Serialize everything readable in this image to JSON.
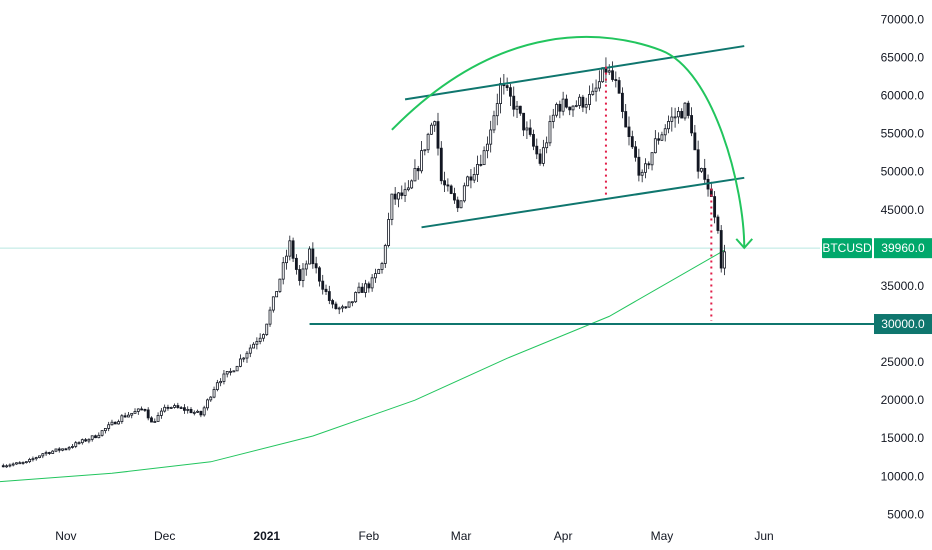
{
  "chart_data": {
    "type": "candlestick",
    "symbol": "BTCUSD",
    "last_price_label": "39960.0",
    "level_label": "30000.0",
    "y_axis": {
      "ticks": [
        "70000.0",
        "65000.0",
        "60000.0",
        "55000.0",
        "50000.0",
        "45000.0",
        "35000.0",
        "30000.0",
        "25000.0",
        "20000.0",
        "15000.0",
        "10000.0",
        "5000.0"
      ],
      "range": [
        4000,
        71500
      ]
    },
    "x_axis": {
      "ticks": [
        {
          "label": "Nov",
          "date": "2020-11-01"
        },
        {
          "label": "Dec",
          "date": "2020-12-01"
        },
        {
          "label": "2021",
          "date": "2021-01-01",
          "bold": true
        },
        {
          "label": "Feb",
          "date": "2021-02-01"
        },
        {
          "label": "Mar",
          "date": "2021-03-01"
        },
        {
          "label": "Apr",
          "date": "2021-04-01"
        },
        {
          "label": "May",
          "date": "2021-05-01"
        },
        {
          "label": "Jun",
          "date": "2021-06-01"
        }
      ],
      "range": [
        "2020-10-12",
        "2021-06-18"
      ]
    },
    "price_waypoints": [
      {
        "date": "2020-10-12",
        "close": 11400
      },
      {
        "date": "2020-10-20",
        "close": 11800
      },
      {
        "date": "2020-10-25",
        "close": 13000
      },
      {
        "date": "2020-11-01",
        "close": 13700
      },
      {
        "date": "2020-11-10",
        "close": 15300
      },
      {
        "date": "2020-11-18",
        "close": 17800
      },
      {
        "date": "2020-11-25",
        "close": 18900
      },
      {
        "date": "2020-11-27",
        "close": 17000
      },
      {
        "date": "2020-12-02",
        "close": 19200
      },
      {
        "date": "2020-12-08",
        "close": 18700
      },
      {
        "date": "2020-12-12",
        "close": 18100
      },
      {
        "date": "2020-12-17",
        "close": 22500
      },
      {
        "date": "2020-12-21",
        "close": 23700
      },
      {
        "date": "2020-12-26",
        "close": 26400
      },
      {
        "date": "2020-12-31",
        "close": 29000
      },
      {
        "date": "2021-01-03",
        "close": 33000
      },
      {
        "date": "2021-01-08",
        "close": 40500
      },
      {
        "date": "2021-01-11",
        "close": 35500
      },
      {
        "date": "2021-01-14",
        "close": 39200
      },
      {
        "date": "2021-01-17",
        "close": 36000
      },
      {
        "date": "2021-01-21",
        "close": 32200
      },
      {
        "date": "2021-01-25",
        "close": 31800
      },
      {
        "date": "2021-01-29",
        "close": 34300
      },
      {
        "date": "2021-02-02",
        "close": 35500
      },
      {
        "date": "2021-02-05",
        "close": 37800
      },
      {
        "date": "2021-02-08",
        "close": 46400
      },
      {
        "date": "2021-02-13",
        "close": 47200
      },
      {
        "date": "2021-02-17",
        "close": 52100
      },
      {
        "date": "2021-02-21",
        "close": 57500
      },
      {
        "date": "2021-02-23",
        "close": 48800
      },
      {
        "date": "2021-02-28",
        "close": 45200
      },
      {
        "date": "2021-03-02",
        "close": 48400
      },
      {
        "date": "2021-03-08",
        "close": 52500
      },
      {
        "date": "2021-03-13",
        "close": 61200
      },
      {
        "date": "2021-03-17",
        "close": 58900
      },
      {
        "date": "2021-03-22",
        "close": 54200
      },
      {
        "date": "2021-03-25",
        "close": 51300
      },
      {
        "date": "2021-03-30",
        "close": 58700
      },
      {
        "date": "2021-04-05",
        "close": 58900
      },
      {
        "date": "2021-04-10",
        "close": 59800
      },
      {
        "date": "2021-04-14",
        "close": 63500
      },
      {
        "date": "2021-04-17",
        "close": 61300
      },
      {
        "date": "2021-04-20",
        "close": 55500
      },
      {
        "date": "2021-04-25",
        "close": 49100
      },
      {
        "date": "2021-04-29",
        "close": 53800
      },
      {
        "date": "2021-05-03",
        "close": 56600
      },
      {
        "date": "2021-05-08",
        "close": 58300
      },
      {
        "date": "2021-05-10",
        "close": 55800
      },
      {
        "date": "2021-05-12",
        "close": 49500
      },
      {
        "date": "2021-05-14",
        "close": 49800
      },
      {
        "date": "2021-05-16",
        "close": 46400
      },
      {
        "date": "2021-05-18",
        "close": 42900
      },
      {
        "date": "2021-05-19",
        "close": 37000
      },
      {
        "date": "2021-05-20",
        "close": 39960
      }
    ],
    "moving_average": {
      "color": "#22c55e",
      "points": [
        {
          "date": "2020-10-12",
          "value": 9300
        },
        {
          "date": "2020-11-15",
          "value": 10400
        },
        {
          "date": "2020-12-15",
          "value": 11900
        },
        {
          "date": "2021-01-15",
          "value": 15300
        },
        {
          "date": "2021-02-15",
          "value": 20000
        },
        {
          "date": "2021-03-15",
          "value": 25500
        },
        {
          "date": "2021-04-15",
          "value": 31000
        },
        {
          "date": "2021-05-20",
          "value": 39700
        }
      ]
    },
    "annotations": {
      "horizontal_level": {
        "value": 30000,
        "from": "2021-01-14",
        "color": "#0f766e"
      },
      "channel_upper": {
        "from": {
          "date": "2021-02-12",
          "value": 59500
        },
        "to": {
          "date": "2021-05-26",
          "value": 66500
        },
        "color": "#0f766e"
      },
      "channel_lower": {
        "from": {
          "date": "2021-02-17",
          "value": 42700
        },
        "to": {
          "date": "2021-05-26",
          "value": 49200
        },
        "color": "#0f766e"
      },
      "arc": {
        "start": {
          "date": "2021-02-08",
          "value": 55500
        },
        "peak": {
          "date": "2021-04-10",
          "value": 67000
        },
        "end": {
          "date": "2021-05-26",
          "value": 40000
        },
        "color": "#22c55e"
      },
      "measure_lines": [
        {
          "date": "2021-04-14",
          "top": 63800,
          "bottom": 46500,
          "color": "#e11d48"
        },
        {
          "date": "2021-05-16",
          "top": 47800,
          "bottom": 30400,
          "color": "#e11d48"
        }
      ]
    },
    "colors": {
      "up": "#26a69a",
      "down": "#131722",
      "tag_bg": "#00a86b",
      "level_tag_bg": "#0f766e"
    }
  }
}
